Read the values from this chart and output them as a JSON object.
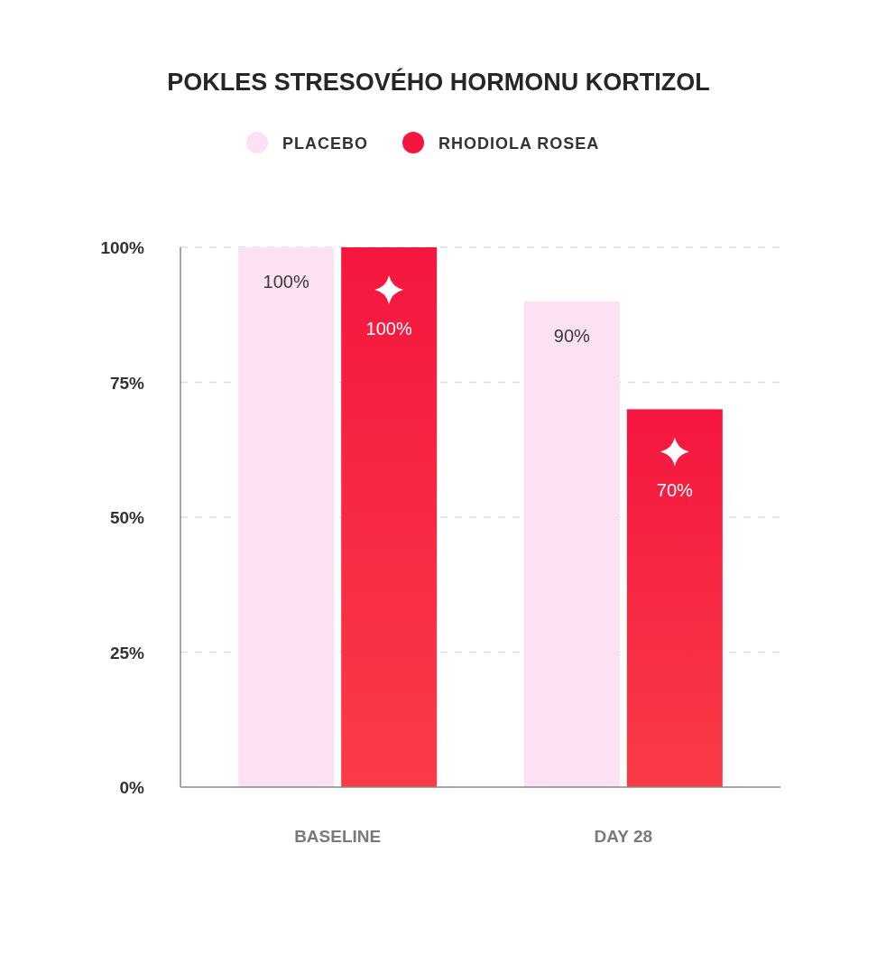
{
  "chart_data": {
    "type": "bar",
    "title": "POKLES STRESOVÉHO HORMONU KORTIZOL",
    "categories": [
      "BASELINE",
      "DAY 28"
    ],
    "series": [
      {
        "name": "PLACEBO",
        "color": "#fce0f4",
        "values": [
          100,
          90
        ],
        "value_labels": [
          "100%",
          "90%"
        ]
      },
      {
        "name": "RHODIOLA ROSEA",
        "color": "#f5163f",
        "values": [
          100,
          70
        ],
        "value_labels": [
          "100%",
          "70%"
        ]
      }
    ],
    "ylim": [
      0,
      100
    ],
    "yticks": [
      {
        "value": 0,
        "label": "0%"
      },
      {
        "value": 25,
        "label": "25%"
      },
      {
        "value": 50,
        "label": "50%"
      },
      {
        "value": 75,
        "label": "75%"
      },
      {
        "value": 100,
        "label": "100%"
      }
    ],
    "grid": "y",
    "legend": "top"
  }
}
